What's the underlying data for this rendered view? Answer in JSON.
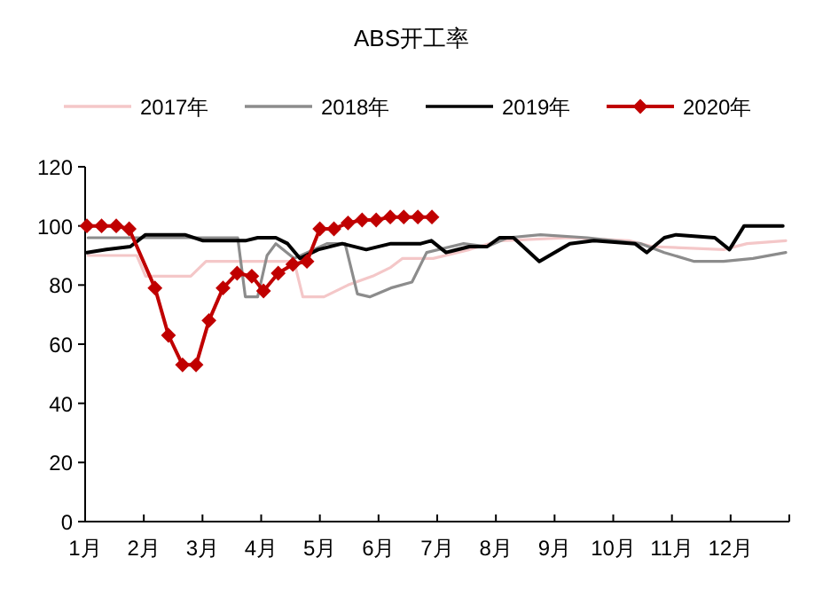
{
  "chart_data": {
    "type": "line",
    "title": "ABS开工率",
    "xlim": [
      1,
      13
    ],
    "xticks": [
      {
        "value": 1,
        "label": "1月"
      },
      {
        "value": 2,
        "label": "2月"
      },
      {
        "value": 3,
        "label": "3月"
      },
      {
        "value": 4,
        "label": "4月"
      },
      {
        "value": 5,
        "label": "5月"
      },
      {
        "value": 6,
        "label": "6月"
      },
      {
        "value": 7,
        "label": "7月"
      },
      {
        "value": 8,
        "label": "8月"
      },
      {
        "value": 9,
        "label": "9月"
      },
      {
        "value": 10,
        "label": "10月"
      },
      {
        "value": 11,
        "label": "11月"
      },
      {
        "value": 12,
        "label": "12月"
      },
      {
        "value": 13,
        "label": null
      }
    ],
    "ylim": [
      0,
      120
    ],
    "yticks": [
      0,
      20,
      40,
      60,
      80,
      100,
      120
    ],
    "legend": "top",
    "series": [
      {
        "name": "2017年",
        "color": "#f4c7c8",
        "marker": "none",
        "x": [
          1.05,
          1.88,
          2.03,
          2.8,
          3.06,
          4.56,
          4.71,
          5.07,
          5.48,
          5.9,
          6.21,
          6.41,
          6.93,
          7.55,
          8.06,
          9.26,
          10.27,
          10.67,
          11.88,
          12.28,
          12.94
        ],
        "values": [
          90,
          90,
          83,
          83,
          88,
          88,
          76,
          76,
          80,
          83,
          86,
          89,
          89,
          92,
          95,
          96,
          95,
          93,
          92,
          94,
          95
        ]
      },
      {
        "name": "2018年",
        "color": "#8c8c8c",
        "marker": "none",
        "x": [
          1.05,
          1.77,
          3.47,
          3.6,
          3.73,
          3.94,
          4.1,
          4.25,
          4.56,
          5.12,
          5.43,
          5.64,
          5.85,
          6.21,
          6.57,
          6.82,
          7.45,
          7.85,
          8.2,
          8.76,
          9.56,
          10.47,
          10.87,
          11.38,
          11.88,
          12.38,
          12.94
        ],
        "values": [
          96,
          96,
          96,
          96,
          76,
          76,
          90,
          94,
          89,
          94,
          94,
          77,
          76,
          79,
          81,
          91,
          94,
          93,
          96,
          97,
          96,
          94,
          91,
          88,
          88,
          89,
          91
        ]
      },
      {
        "name": "2019年",
        "color": "#000000",
        "marker": "none",
        "x": [
          1.03,
          1.36,
          1.77,
          2.03,
          2.7,
          3.01,
          3.32,
          3.73,
          3.94,
          4.25,
          4.45,
          4.66,
          4.97,
          5.38,
          5.79,
          6.21,
          6.72,
          6.9,
          7.15,
          7.55,
          7.85,
          8.06,
          8.3,
          8.74,
          9.26,
          9.67,
          10.37,
          10.57,
          10.87,
          11.07,
          11.73,
          11.98,
          12.23,
          12.89
        ],
        "values": [
          91,
          92,
          93,
          97,
          97,
          95,
          95,
          95,
          96,
          96,
          94,
          89,
          92,
          94,
          92,
          94,
          94,
          95,
          91,
          93,
          93,
          96,
          96,
          88,
          94,
          95,
          94,
          91,
          96,
          97,
          96,
          92,
          100,
          100
        ]
      },
      {
        "name": "2020年",
        "color": "#c00000",
        "marker": "diamond",
        "x": [
          1.03,
          1.28,
          1.53,
          1.75,
          2.19,
          2.42,
          2.66,
          2.89,
          3.11,
          3.35,
          3.59,
          3.84,
          4.04,
          4.29,
          4.54,
          4.78,
          5.0,
          5.24,
          5.48,
          5.72,
          5.96,
          6.2,
          6.43,
          6.67,
          6.91
        ],
        "values": [
          100,
          100,
          100,
          99,
          79,
          63,
          53,
          53,
          68,
          79,
          84,
          83,
          78,
          84,
          87,
          88,
          99,
          99,
          101,
          102,
          102,
          103,
          103,
          103,
          103
        ]
      }
    ]
  }
}
